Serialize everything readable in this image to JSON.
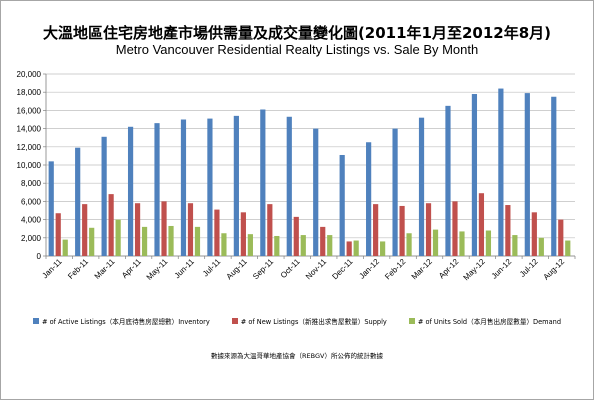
{
  "chart_data": {
    "type": "bar",
    "title": "大溫地區住宅房地產市場供需量及成交量變化圖(2011年1月至2012年8月)",
    "subtitle": "Metro Vancouver Residential Realty Listings vs. Sale By Month",
    "xlabel": "",
    "ylabel": "",
    "ylim": [
      0,
      20000
    ],
    "yticks": [
      "0",
      "2,000",
      "4,000",
      "6,000",
      "8,000",
      "10,000",
      "12,000",
      "14,000",
      "16,000",
      "18,000",
      "20,000"
    ],
    "grid": true,
    "legend_position": "bottom",
    "categories": [
      "Jan-11",
      "Feb-11",
      "Mar-11",
      "Apr-11",
      "May-11",
      "Jun-11",
      "Jul-11",
      "Aug-11",
      "Sep-11",
      "Oct-11",
      "Nov-11",
      "Dec-11",
      "Jan-12",
      "Feb-12",
      "Mar-12",
      "Apr-12",
      "May-12",
      "Jun-12",
      "Jul-12",
      "Aug-12"
    ],
    "series": [
      {
        "name": "# of Active Listings（本月底待售房屋總數）Inventory",
        "color": "#4f81bd",
        "values": [
          10400,
          11900,
          13100,
          14200,
          14600,
          15000,
          15100,
          15400,
          16100,
          15300,
          14000,
          11100,
          12500,
          14000,
          15200,
          16500,
          17800,
          18400,
          17900,
          17500
        ]
      },
      {
        "name": "# of New Listings（新推出求售屋數量）Supply",
        "color": "#c0504d",
        "values": [
          4700,
          5700,
          6800,
          5800,
          6000,
          5800,
          5100,
          4800,
          5700,
          4300,
          3200,
          1600,
          5700,
          5500,
          5800,
          6000,
          6900,
          5600,
          4800,
          4000
        ]
      },
      {
        "name": "# of Units Sold（本月售出房屋數量）Demand",
        "color": "#9bbb59",
        "values": [
          1800,
          3100,
          4000,
          3200,
          3300,
          3200,
          2500,
          2400,
          2200,
          2300,
          2300,
          1700,
          1600,
          2500,
          2900,
          2700,
          2800,
          2300,
          2000,
          1700
        ]
      }
    ]
  },
  "source_note": "數據來源為大溫哥華地產協會（REBGV）所公佈的統計數據"
}
